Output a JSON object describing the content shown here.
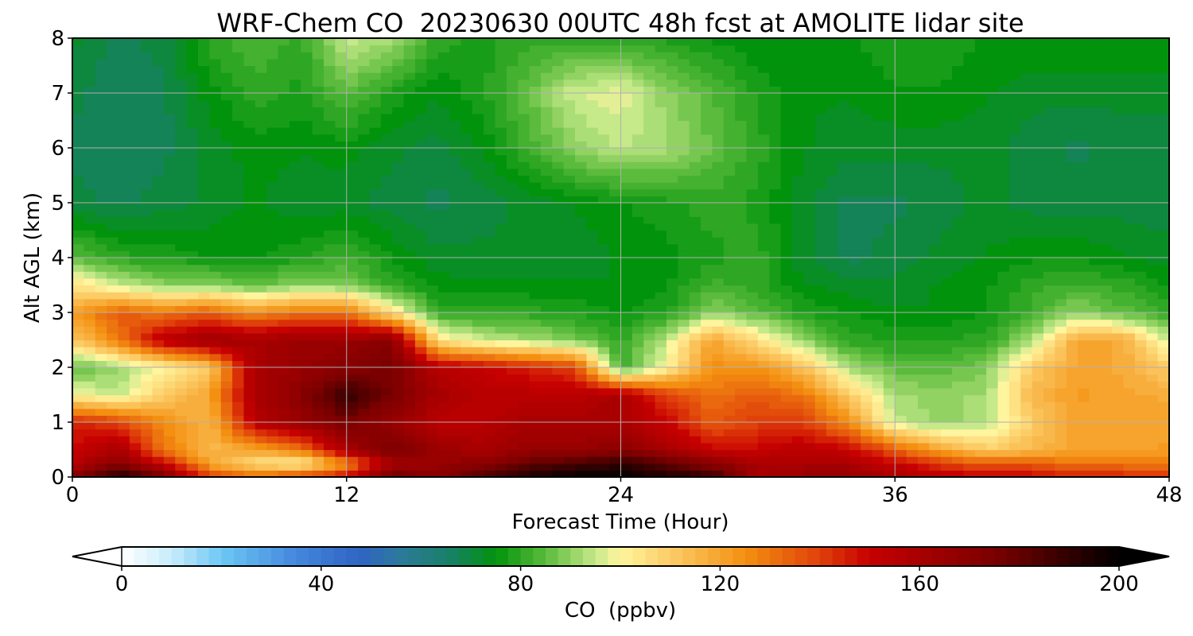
{
  "chart_data": {
    "type": "heatmap",
    "title": "WRF-Chem CO  20230630 00UTC 48h fcst at AMOLITE lidar site",
    "xlabel": "Forecast Time (Hour)",
    "ylabel": "Alt AGL (km)",
    "xlim": [
      0,
      48
    ],
    "ylim": [
      0,
      8
    ],
    "xticks": [
      0,
      12,
      24,
      36,
      48
    ],
    "yticks": [
      0,
      1,
      2,
      3,
      4,
      5,
      6,
      7,
      8
    ],
    "grid": true,
    "x": [
      0,
      2,
      4,
      6,
      8,
      10,
      12,
      14,
      16,
      18,
      20,
      22,
      24,
      26,
      28,
      30,
      32,
      34,
      36,
      38,
      40,
      42,
      44,
      46,
      48
    ],
    "y": [
      0,
      0.25,
      0.5,
      1,
      1.5,
      2,
      2.5,
      3,
      3.5,
      4,
      5,
      6,
      7,
      8
    ],
    "z": [
      [
        170,
        195,
        175,
        140,
        135,
        140,
        150,
        180,
        170,
        185,
        195,
        200,
        200,
        195,
        190,
        160,
        165,
        165,
        160,
        155,
        150,
        150,
        145,
        145,
        145
      ],
      [
        155,
        170,
        150,
        120,
        105,
        100,
        125,
        160,
        165,
        170,
        180,
        185,
        190,
        180,
        170,
        160,
        160,
        160,
        150,
        140,
        135,
        135,
        130,
        130,
        128
      ],
      [
        150,
        160,
        130,
        115,
        120,
        130,
        160,
        175,
        165,
        160,
        165,
        165,
        170,
        160,
        150,
        150,
        155,
        150,
        135,
        120,
        110,
        115,
        120,
        120,
        122
      ],
      [
        145,
        140,
        125,
        115,
        155,
        165,
        175,
        165,
        155,
        155,
        160,
        160,
        160,
        150,
        135,
        140,
        140,
        125,
        95,
        90,
        92,
        110,
        120,
        120,
        120
      ],
      [
        100,
        95,
        110,
        120,
        160,
        170,
        190,
        175,
        160,
        155,
        155,
        155,
        160,
        140,
        130,
        135,
        130,
        110,
        92,
        90,
        92,
        115,
        122,
        120,
        118
      ],
      [
        85,
        90,
        100,
        110,
        160,
        165,
        170,
        175,
        155,
        150,
        145,
        140,
        80,
        100,
        125,
        125,
        112,
        92,
        85,
        85,
        88,
        110,
        120,
        118,
        110
      ],
      [
        110,
        130,
        155,
        165,
        160,
        165,
        165,
        170,
        105,
        95,
        92,
        88,
        80,
        95,
        120,
        105,
        90,
        80,
        78,
        78,
        80,
        92,
        120,
        118,
        95
      ],
      [
        122,
        135,
        130,
        135,
        125,
        130,
        130,
        105,
        80,
        80,
        80,
        78,
        76,
        78,
        90,
        85,
        78,
        76,
        74,
        74,
        76,
        82,
        90,
        85,
        80
      ],
      [
        105,
        95,
        90,
        90,
        85,
        90,
        88,
        80,
        75,
        74,
        74,
        74,
        74,
        76,
        82,
        80,
        74,
        72,
        72,
        74,
        76,
        80,
        82,
        80,
        76
      ],
      [
        85,
        80,
        78,
        76,
        76,
        78,
        82,
        76,
        72,
        72,
        72,
        72,
        74,
        75,
        78,
        80,
        72,
        68,
        70,
        72,
        74,
        76,
        76,
        74,
        72
      ],
      [
        70,
        68,
        70,
        72,
        74,
        72,
        72,
        70,
        68,
        70,
        72,
        74,
        76,
        78,
        80,
        78,
        72,
        68,
        68,
        70,
        72,
        70,
        70,
        70,
        70
      ],
      [
        68,
        66,
        68,
        72,
        75,
        74,
        75,
        72,
        70,
        74,
        82,
        90,
        94,
        92,
        86,
        80,
        74,
        72,
        72,
        72,
        72,
        70,
        68,
        70,
        70
      ],
      [
        70,
        66,
        68,
        75,
        80,
        78,
        85,
        78,
        74,
        78,
        86,
        96,
        98,
        90,
        84,
        78,
        74,
        74,
        76,
        76,
        74,
        72,
        72,
        72,
        72
      ],
      [
        72,
        68,
        70,
        80,
        84,
        80,
        96,
        92,
        80,
        78,
        80,
        80,
        80,
        78,
        76,
        74,
        74,
        76,
        78,
        78,
        76,
        76,
        76,
        76,
        76
      ]
    ],
    "colorbar": {
      "label": "CO  (ppbv)",
      "min": 0,
      "max": 200,
      "ticks": [
        0,
        40,
        80,
        120,
        160,
        200
      ],
      "extend": "both",
      "colors": [
        {
          "v": 0,
          "c": "#ffffff"
        },
        {
          "v": 10,
          "c": "#c8ebfb"
        },
        {
          "v": 20,
          "c": "#6cc8f4"
        },
        {
          "v": 35,
          "c": "#4487dc"
        },
        {
          "v": 48,
          "c": "#2f64c3"
        },
        {
          "v": 56,
          "c": "#2d7a9a"
        },
        {
          "v": 66,
          "c": "#188066"
        },
        {
          "v": 75,
          "c": "#02930c"
        },
        {
          "v": 85,
          "c": "#5bbb3c"
        },
        {
          "v": 95,
          "c": "#c6e98a"
        },
        {
          "v": 100,
          "c": "#fff59e"
        },
        {
          "v": 112,
          "c": "#fbc45c"
        },
        {
          "v": 125,
          "c": "#f49011"
        },
        {
          "v": 140,
          "c": "#e0400a"
        },
        {
          "v": 150,
          "c": "#c70000"
        },
        {
          "v": 175,
          "c": "#7a0000"
        },
        {
          "v": 200,
          "c": "#000000"
        }
      ]
    }
  }
}
